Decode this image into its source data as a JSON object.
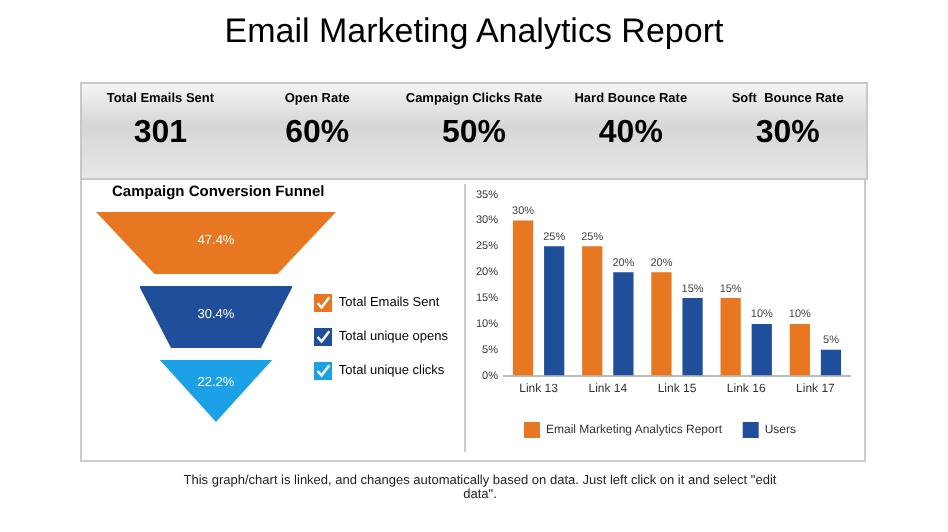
{
  "chart_data": [
    {
      "type": "other",
      "title": "Email Marketing Analytics Report",
      "categories": [
        "Total Emails Sent",
        "Open Rate",
        "Campaign Clicks Rate",
        "Hard Bounce Rate",
        "Soft  Bounce Rate"
      ],
      "values": [
        301,
        60,
        50,
        40,
        30
      ],
      "value_labels": [
        "301",
        "60%",
        "50%",
        "40%",
        "30%"
      ]
    },
    {
      "type": "other",
      "title": "Campaign Conversion Funnel",
      "categories": [
        "Total Emails Sent",
        "Total unique opens",
        "Total unique clicks"
      ],
      "values": [
        47.4,
        30.4,
        22.2
      ],
      "value_labels": [
        "47.4%",
        "30.4%",
        "22.2%"
      ],
      "colors": [
        "#e87722",
        "#1f4e9a",
        "#1da1e6"
      ]
    },
    {
      "type": "bar",
      "categories": [
        "Link 13",
        "Link 14",
        "Link 15",
        "Link 16",
        "Link 17"
      ],
      "series": [
        {
          "name": "Email Marketing Analytics Report",
          "color": "#e87722",
          "values": [
            30,
            25,
            20,
            15,
            10
          ],
          "value_labels": [
            "30%",
            "25%",
            "20%",
            "15%",
            "10%"
          ]
        },
        {
          "name": "Users",
          "color": "#1f4e9a",
          "values": [
            25,
            20,
            15,
            10,
            5
          ],
          "value_labels": [
            "25%",
            "20%",
            "15%",
            "10%",
            "5%"
          ]
        }
      ],
      "ylim": [
        0,
        35
      ],
      "yticks": [
        {
          "value": 0,
          "label": "0%"
        },
        {
          "value": 5,
          "label": "5%"
        },
        {
          "value": 10,
          "label": "10%"
        },
        {
          "value": 15,
          "label": "15%"
        },
        {
          "value": 20,
          "label": "20%"
        },
        {
          "value": 25,
          "label": "25%"
        },
        {
          "value": 30,
          "label": "30%"
        },
        {
          "value": 35,
          "label": "35%"
        }
      ],
      "grid": false,
      "legend": "bottom",
      "annotations": [
        "This graph/chart is linked, and changes automatically based on data. Just left click on it and select \"edit data\"."
      ]
    }
  ]
}
